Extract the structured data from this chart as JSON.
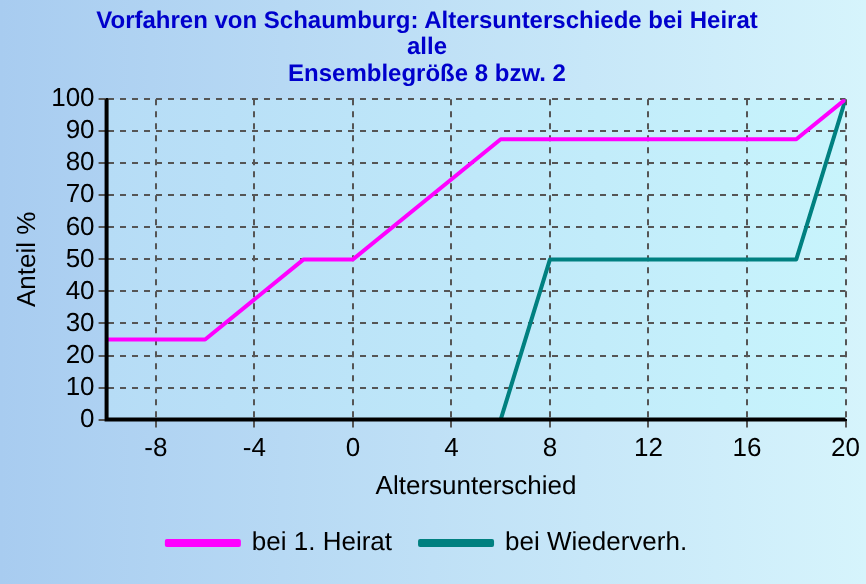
{
  "chart_data": {
    "type": "line",
    "title": "Vorfahren von Schaumburg: Altersunterschiede bei Heirat\nalle\nEnsemblegröße 8 bzw. 2",
    "xlabel": "Altersunterschied",
    "ylabel": "Anteil %",
    "series": [
      {
        "name": "bei 1. Heirat",
        "color": "#ff00ff",
        "x": [
          -10,
          -6,
          -2,
          0,
          6,
          18,
          20
        ],
        "values": [
          25,
          25,
          50,
          50,
          87.5,
          87.5,
          100
        ]
      },
      {
        "name": "bei Wiederverh.",
        "color": "#008080",
        "x": [
          6,
          8,
          18,
          20
        ],
        "values": [
          0,
          50,
          50,
          100
        ]
      }
    ],
    "xlim": [
      -10,
      20
    ],
    "xticks": [
      -8,
      -4,
      0,
      4,
      8,
      12,
      16,
      20
    ],
    "ylim": [
      0,
      100
    ],
    "yticks": [
      0,
      10,
      20,
      30,
      40,
      50,
      60,
      70,
      80,
      90,
      100
    ],
    "grid": true,
    "legend": "bottom",
    "marker": "none",
    "line_style": "solid"
  }
}
